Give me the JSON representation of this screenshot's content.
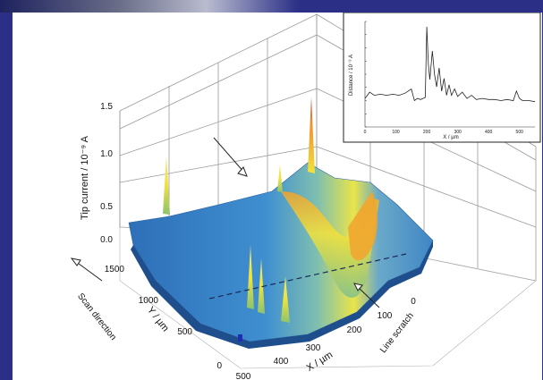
{
  "chart_data": [
    {
      "type": "surface",
      "zlabel": "Tip current / 10⁻⁹ A",
      "xlabel": "X / µm",
      "ylabel": "Y / µm",
      "z_ticks": [
        "0.0",
        "0.5",
        "1.0",
        "1.5"
      ],
      "x_ticks": [
        "0",
        "100",
        "200",
        "300",
        "400",
        "500"
      ],
      "y_ticks": [
        "0",
        "500",
        "1000",
        "1500"
      ],
      "xlim": [
        0,
        500
      ],
      "ylim": [
        0,
        1500
      ],
      "zlim": [
        0,
        1.7
      ],
      "annotations": [
        "Scan direction",
        "Line scratch"
      ],
      "colormap": [
        "#1f5fae",
        "#3f8fd0",
        "#66b7c7",
        "#b7de6a",
        "#f3e53a",
        "#f0a630",
        "#d02a1e"
      ],
      "grid": true
    },
    {
      "type": "line",
      "inset": true,
      "ylabel": "Distance / 10⁻⁹ A",
      "xlabel": "X / µm",
      "x_ticks": [
        "0",
        "100",
        "200",
        "300",
        "400",
        "500"
      ],
      "xlim": [
        0,
        550
      ],
      "ylim": [
        0,
        1
      ],
      "x": [
        0,
        15,
        30,
        50,
        70,
        90,
        110,
        130,
        150,
        160,
        170,
        180,
        195,
        200,
        205,
        210,
        218,
        225,
        232,
        240,
        248,
        256,
        264,
        272,
        280,
        290,
        300,
        315,
        330,
        345,
        360,
        380,
        400,
        420,
        440,
        460,
        480,
        490,
        500,
        510,
        530,
        550
      ],
      "y": [
        0.27,
        0.33,
        0.3,
        0.31,
        0.3,
        0.31,
        0.3,
        0.32,
        0.36,
        0.25,
        0.27,
        0.26,
        0.28,
        0.95,
        0.6,
        0.45,
        0.72,
        0.5,
        0.38,
        0.56,
        0.34,
        0.46,
        0.3,
        0.4,
        0.3,
        0.36,
        0.29,
        0.33,
        0.27,
        0.3,
        0.26,
        0.27,
        0.26,
        0.26,
        0.25,
        0.26,
        0.25,
        0.34,
        0.27,
        0.25,
        0.25,
        0.24
      ]
    }
  ]
}
